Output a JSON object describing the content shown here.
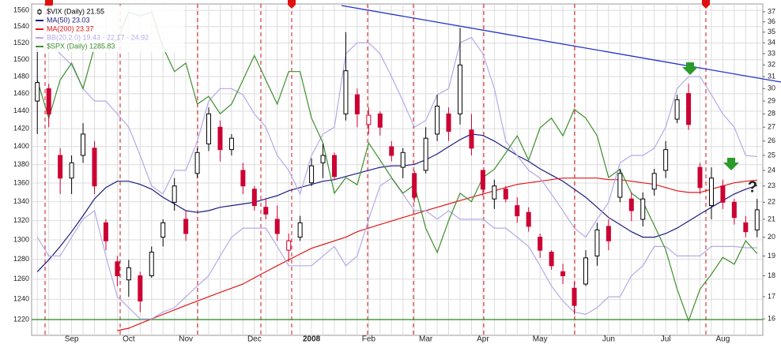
{
  "chart_data": {
    "type": "candlestick",
    "categories": [
      null,
      null,
      null,
      "Sep",
      null,
      null,
      null,
      null,
      "Oct",
      null,
      null,
      null,
      null,
      "Nov",
      null,
      null,
      null,
      null,
      null,
      "Dec",
      null,
      null,
      null,
      null,
      "2008",
      null,
      null,
      null,
      null,
      "Feb",
      null,
      null,
      null,
      null,
      "Mar",
      null,
      null,
      null,
      null,
      "Apr",
      null,
      null,
      null,
      null,
      "May",
      null,
      null,
      null,
      null,
      null,
      "Jun",
      null,
      null,
      null,
      null,
      "Jul",
      null,
      null,
      null,
      null,
      "Aug",
      null,
      null,
      null
    ],
    "candles": {
      "name": "$VIX (Daily) 21.55",
      "up_color": "#000000",
      "down_color": "#cc0033",
      "axis": "y2",
      "open": [
        29,
        30,
        25,
        23.5,
        25,
        25.5,
        20.8,
        18.7,
        17.8,
        18,
        18,
        20,
        22,
        21,
        23.8,
        25.8,
        27,
        25.4,
        24,
        22.8,
        21.7,
        21,
        19.3,
        20,
        23.2,
        24.5,
        25,
        28,
        29.5,
        27.2,
        28,
        25.6,
        24.2,
        23.8,
        24,
        26.5,
        28,
        28,
        26.8,
        24,
        22.2,
        22.8,
        21.8,
        21.4,
        20,
        19.2,
        18.2,
        17.4,
        17.6,
        19,
        20.6,
        22.3,
        22.2,
        21,
        22.8,
        24,
        27.6,
        29.6,
        24.2,
        21.8,
        23,
        22,
        20.8,
        20.4
      ],
      "high": [
        33.5,
        30.4,
        25.5,
        25,
        27.3,
        26,
        21,
        19,
        18.8,
        18.2,
        19.5,
        21,
        23.5,
        21.5,
        25.5,
        28.5,
        27.5,
        26.5,
        24.5,
        23,
        22.2,
        21.8,
        20.2,
        21.2,
        24.8,
        25.8,
        25.2,
        35,
        30,
        28.5,
        28.2,
        26,
        25.5,
        24,
        27,
        29.5,
        28.5,
        35.4,
        28,
        24,
        23.4,
        23,
        22.3,
        21.7,
        20.2,
        19.3,
        18.6,
        17.7,
        19.3,
        20.8,
        21,
        24.1,
        22.6,
        22.6,
        24.1,
        26,
        29.5,
        30.4,
        24.5,
        24.2,
        23.4,
        22.2,
        21.2,
        22.2
      ],
      "low": [
        26.5,
        27,
        22.5,
        22.5,
        24.5,
        22.5,
        19.3,
        17.5,
        17,
        16.3,
        17.9,
        19.5,
        21.5,
        19.8,
        23.5,
        25.3,
        24.6,
        25,
        22.5,
        21.5,
        21,
        19.8,
        18.7,
        19.8,
        23,
        23.5,
        23.4,
        27.5,
        27,
        26.5,
        26.4,
        24.6,
        23.5,
        22,
        23.8,
        26,
        26,
        27.2,
        25,
        22.4,
        21.6,
        22,
        20.8,
        20.3,
        18.9,
        18.3,
        17.6,
        16.2,
        17.5,
        18.5,
        19.3,
        22,
        20.9,
        20.6,
        22.4,
        23.5,
        27.3,
        26.8,
        22.5,
        21,
        21.6,
        20.7,
        20,
        20
      ],
      "close": [
        30.5,
        28,
        23.5,
        24.5,
        26.5,
        23,
        19.8,
        18,
        18.4,
        16.8,
        19.2,
        20.8,
        23,
        20.2,
        25.2,
        28,
        25.4,
        26.2,
        23,
        21.8,
        21.3,
        20.2,
        19.8,
        20.8,
        24.3,
        25,
        23.6,
        31.5,
        28,
        27.9,
        27,
        25,
        25.2,
        22.3,
        26.2,
        28.6,
        26.7,
        32,
        25.5,
        22.8,
        23,
        22.2,
        21.2,
        20.6,
        19.3,
        18.5,
        18,
        16.6,
        18.9,
        20.4,
        19.8,
        23.8,
        21.5,
        22.2,
        23.8,
        25.4,
        29.1,
        27.2,
        22.9,
        23.5,
        22,
        21.1,
        20.3,
        21.55
      ]
    },
    "series": [
      {
        "name": "MA(50) 23.03",
        "color": "#1c1c80",
        "axis": "y2",
        "values": [
          18.2,
          18.8,
          19.5,
          20.3,
          21.2,
          22.2,
          22.9,
          23.3,
          23.3,
          23.1,
          22.8,
          22.3,
          21.9,
          21.5,
          21.4,
          21.5,
          21.7,
          21.8,
          21.9,
          22,
          22.2,
          22.4,
          22.7,
          22.9,
          23.1,
          23.3,
          23.4,
          23.6,
          23.8,
          24,
          24.2,
          24.3,
          24.3,
          24.4,
          24.7,
          25.1,
          25.6,
          26.1,
          26.5,
          26.4,
          26,
          25.5,
          25,
          24.6,
          24.1,
          23.7,
          23.3,
          22.8,
          22.3,
          21.7,
          21.1,
          20.7,
          20.3,
          20,
          20,
          20.2,
          20.5,
          20.9,
          21.3,
          21.7,
          22.1,
          22.5,
          22.8,
          23.03
        ]
      },
      {
        "name": "MA(200) 23.37",
        "color": "#e01818",
        "axis": "y2",
        "values": [
          null,
          null,
          null,
          null,
          null,
          null,
          null,
          15.5,
          15.6,
          15.8,
          16,
          16.2,
          16.4,
          16.6,
          16.8,
          17,
          17.2,
          17.4,
          17.6,
          17.9,
          18.2,
          18.5,
          18.8,
          19.1,
          19.4,
          19.6,
          19.8,
          20,
          20.3,
          20.5,
          20.7,
          20.9,
          21.1,
          21.3,
          21.5,
          21.7,
          21.9,
          22.1,
          22.3,
          22.5,
          22.7,
          22.9,
          23.1,
          23.2,
          23.3,
          23.4,
          23.5,
          23.5,
          23.5,
          23.5,
          23.4,
          23.4,
          23.3,
          23.2,
          23.1,
          22.9,
          22.7,
          22.6,
          22.6,
          22.8,
          23,
          23.2,
          23.3,
          23.37
        ]
      },
      {
        "name": "BB(20,2.0) 19.43 - 22.17 - 24.92",
        "color": "#b4aaea",
        "axis": "y2",
        "values": [
          34,
          34,
          33,
          32,
          30,
          29,
          29,
          28,
          27,
          25,
          23,
          22.5,
          24,
          24,
          26,
          29,
          30,
          30,
          29.5,
          28,
          27,
          25,
          24,
          22.5,
          25,
          26.5,
          27,
          33,
          34,
          34,
          33,
          31,
          29,
          27,
          27.5,
          29.5,
          30,
          34,
          34.5,
          33,
          30,
          26,
          25,
          24,
          23.5,
          22.5,
          21.5,
          20.5,
          20,
          21,
          22,
          24.5,
          25,
          25,
          25.5,
          27,
          30,
          31,
          31,
          29.5,
          28,
          27,
          25,
          24.92
        ],
        "lower": [
          20,
          19,
          19,
          20,
          21,
          21.5,
          19,
          17,
          16.5,
          16,
          16,
          16.3,
          16.5,
          17,
          17.5,
          18,
          19,
          20,
          20.5,
          20.5,
          20.5,
          19.5,
          18.5,
          18.5,
          18.5,
          19,
          19.5,
          18.5,
          19,
          21,
          23,
          23.5,
          22.5,
          21.5,
          21.5,
          21,
          21.5,
          21,
          21,
          21,
          20.5,
          20.5,
          20,
          19.5,
          18.5,
          17.5,
          16.8,
          16.3,
          16.2,
          16.5,
          17,
          17,
          18,
          18.5,
          19.5,
          19.5,
          19,
          19,
          19,
          19.5,
          19.5,
          19.5,
          19.43,
          19.43
        ]
      },
      {
        "name": "$SPX (Daily) 1285.83",
        "color": "#3f8f2f",
        "axis": "y",
        "values": [
          1476,
          1432,
          1476,
          1496,
          1466,
          1515,
          1515,
          1524,
          1558,
          1553,
          1558,
          1515,
          1486,
          1496,
          1448,
          1457,
          1437,
          1448,
          1476,
          1505,
          1476,
          1448,
          1486,
          1486,
          1432,
          1404,
          1349,
          1366,
          1358,
          1404,
          1385,
          1366,
          1349,
          1358,
          1312,
          1287,
          1320,
          1349,
          1340,
          1366,
          1375,
          1393,
          1412,
          1385,
          1421,
          1432,
          1412,
          1442,
          1432,
          1412,
          1366,
          1375,
          1349,
          1340,
          1315,
          1290,
          1250,
          1219,
          1250,
          1265,
          1282,
          1275,
          1299,
          1285.83
        ]
      }
    ],
    "ylim": [
      1205,
      1568
    ],
    "yticks": [
      1220,
      1240,
      1260,
      1280,
      1300,
      1320,
      1340,
      1360,
      1380,
      1400,
      1420,
      1440,
      1460,
      1480,
      1500,
      1520,
      1540,
      1560
    ],
    "y2lim": [
      15.3,
      37.8
    ],
    "y2ticks": [
      16,
      17,
      18,
      19,
      20,
      21,
      22,
      23,
      24,
      25,
      26,
      27,
      28,
      29,
      30,
      31,
      32,
      33,
      34,
      35,
      36,
      37
    ],
    "log_scale": true,
    "grid": true,
    "legend": "upper left",
    "annotation": "?",
    "annotation_color": "#2a8a2a"
  }
}
